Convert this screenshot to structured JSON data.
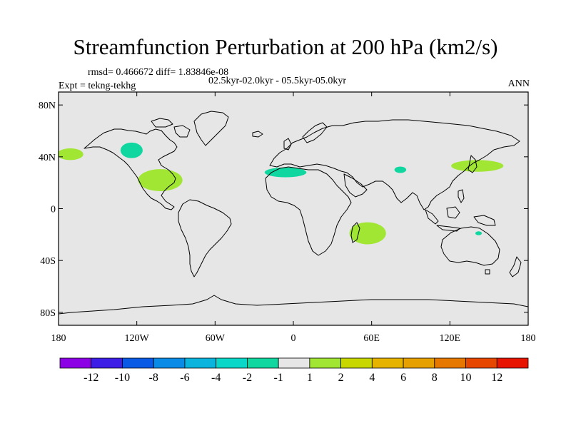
{
  "title": "Streamfunction Perturbation at 200 hPa (km2/s)",
  "stats": "rmsd= 0.466672  diff= 1.83846e-08",
  "experiment": "Expt = tekng-tekhg",
  "period": "02.5kyr-02.0kyr - 05.5kyr-05.0kyr",
  "season": "ANN",
  "map": {
    "projection": "cylindrical-equidistant",
    "lon_range": [
      -180,
      180
    ],
    "lat_range": [
      -90,
      90
    ],
    "background": "#e6e6e6",
    "x_ticks": [
      {
        "lon": -180,
        "label": "180"
      },
      {
        "lon": -120,
        "label": "120W"
      },
      {
        "lon": -60,
        "label": "60W"
      },
      {
        "lon": 0,
        "label": "0"
      },
      {
        "lon": 60,
        "label": "60E"
      },
      {
        "lon": 120,
        "label": "120E"
      },
      {
        "lon": 180,
        "label": "180"
      }
    ],
    "y_ticks": [
      {
        "lat": 80,
        "label": "80N"
      },
      {
        "lat": 40,
        "label": "40N"
      },
      {
        "lat": 0,
        "label": "0"
      },
      {
        "lat": -40,
        "label": "40S"
      },
      {
        "lat": -80,
        "label": "80S"
      }
    ],
    "anomalies": [
      {
        "name": "north-pacific-east",
        "lon": -171,
        "lat": 42,
        "rlon": 10,
        "rlat": 4.5,
        "color": "#a0e632"
      },
      {
        "name": "northwest-america",
        "lon": -124,
        "lat": 45,
        "rlon": 8.5,
        "rlat": 6,
        "color": "#10d7a0"
      },
      {
        "name": "gulf-of-mexico",
        "lon": -102,
        "lat": 22,
        "rlon": 17,
        "rlat": 8.5,
        "color": "#a0e632"
      },
      {
        "name": "north-africa",
        "lon": -6,
        "lat": 28,
        "rlon": 16,
        "rlat": 3.8,
        "color": "#10d7a0"
      },
      {
        "name": "central-asia",
        "lon": 82,
        "lat": 30,
        "rlon": 4.5,
        "rlat": 2.5,
        "color": "#10d7a0"
      },
      {
        "name": "east-asia-pacific",
        "lon": 141,
        "lat": 33,
        "rlon": 20,
        "rlat": 4.5,
        "color": "#a0e632"
      },
      {
        "name": "southern-africa",
        "lon": 57,
        "lat": -19,
        "rlon": 14,
        "rlat": 8.5,
        "color": "#a0e632"
      },
      {
        "name": "northern-australia",
        "lon": 142,
        "lat": -19,
        "rlon": 2.5,
        "rlat": 1.5,
        "color": "#10d7a0"
      }
    ]
  },
  "colorbar": {
    "colors": [
      "#8c00e6",
      "#3c1ee6",
      "#0a5ae6",
      "#0a8ce6",
      "#0ab4dc",
      "#0ad7c8",
      "#10d7a0",
      "#e6e6e6",
      "#a0e632",
      "#c8d700",
      "#e6b400",
      "#e6a000",
      "#e67800",
      "#e64600",
      "#e61400"
    ],
    "labels": [
      "-12",
      "-10",
      "-8",
      "-6",
      "-4",
      "-2",
      "-1",
      "1",
      "2",
      "4",
      "6",
      "8",
      "10",
      "12"
    ]
  }
}
